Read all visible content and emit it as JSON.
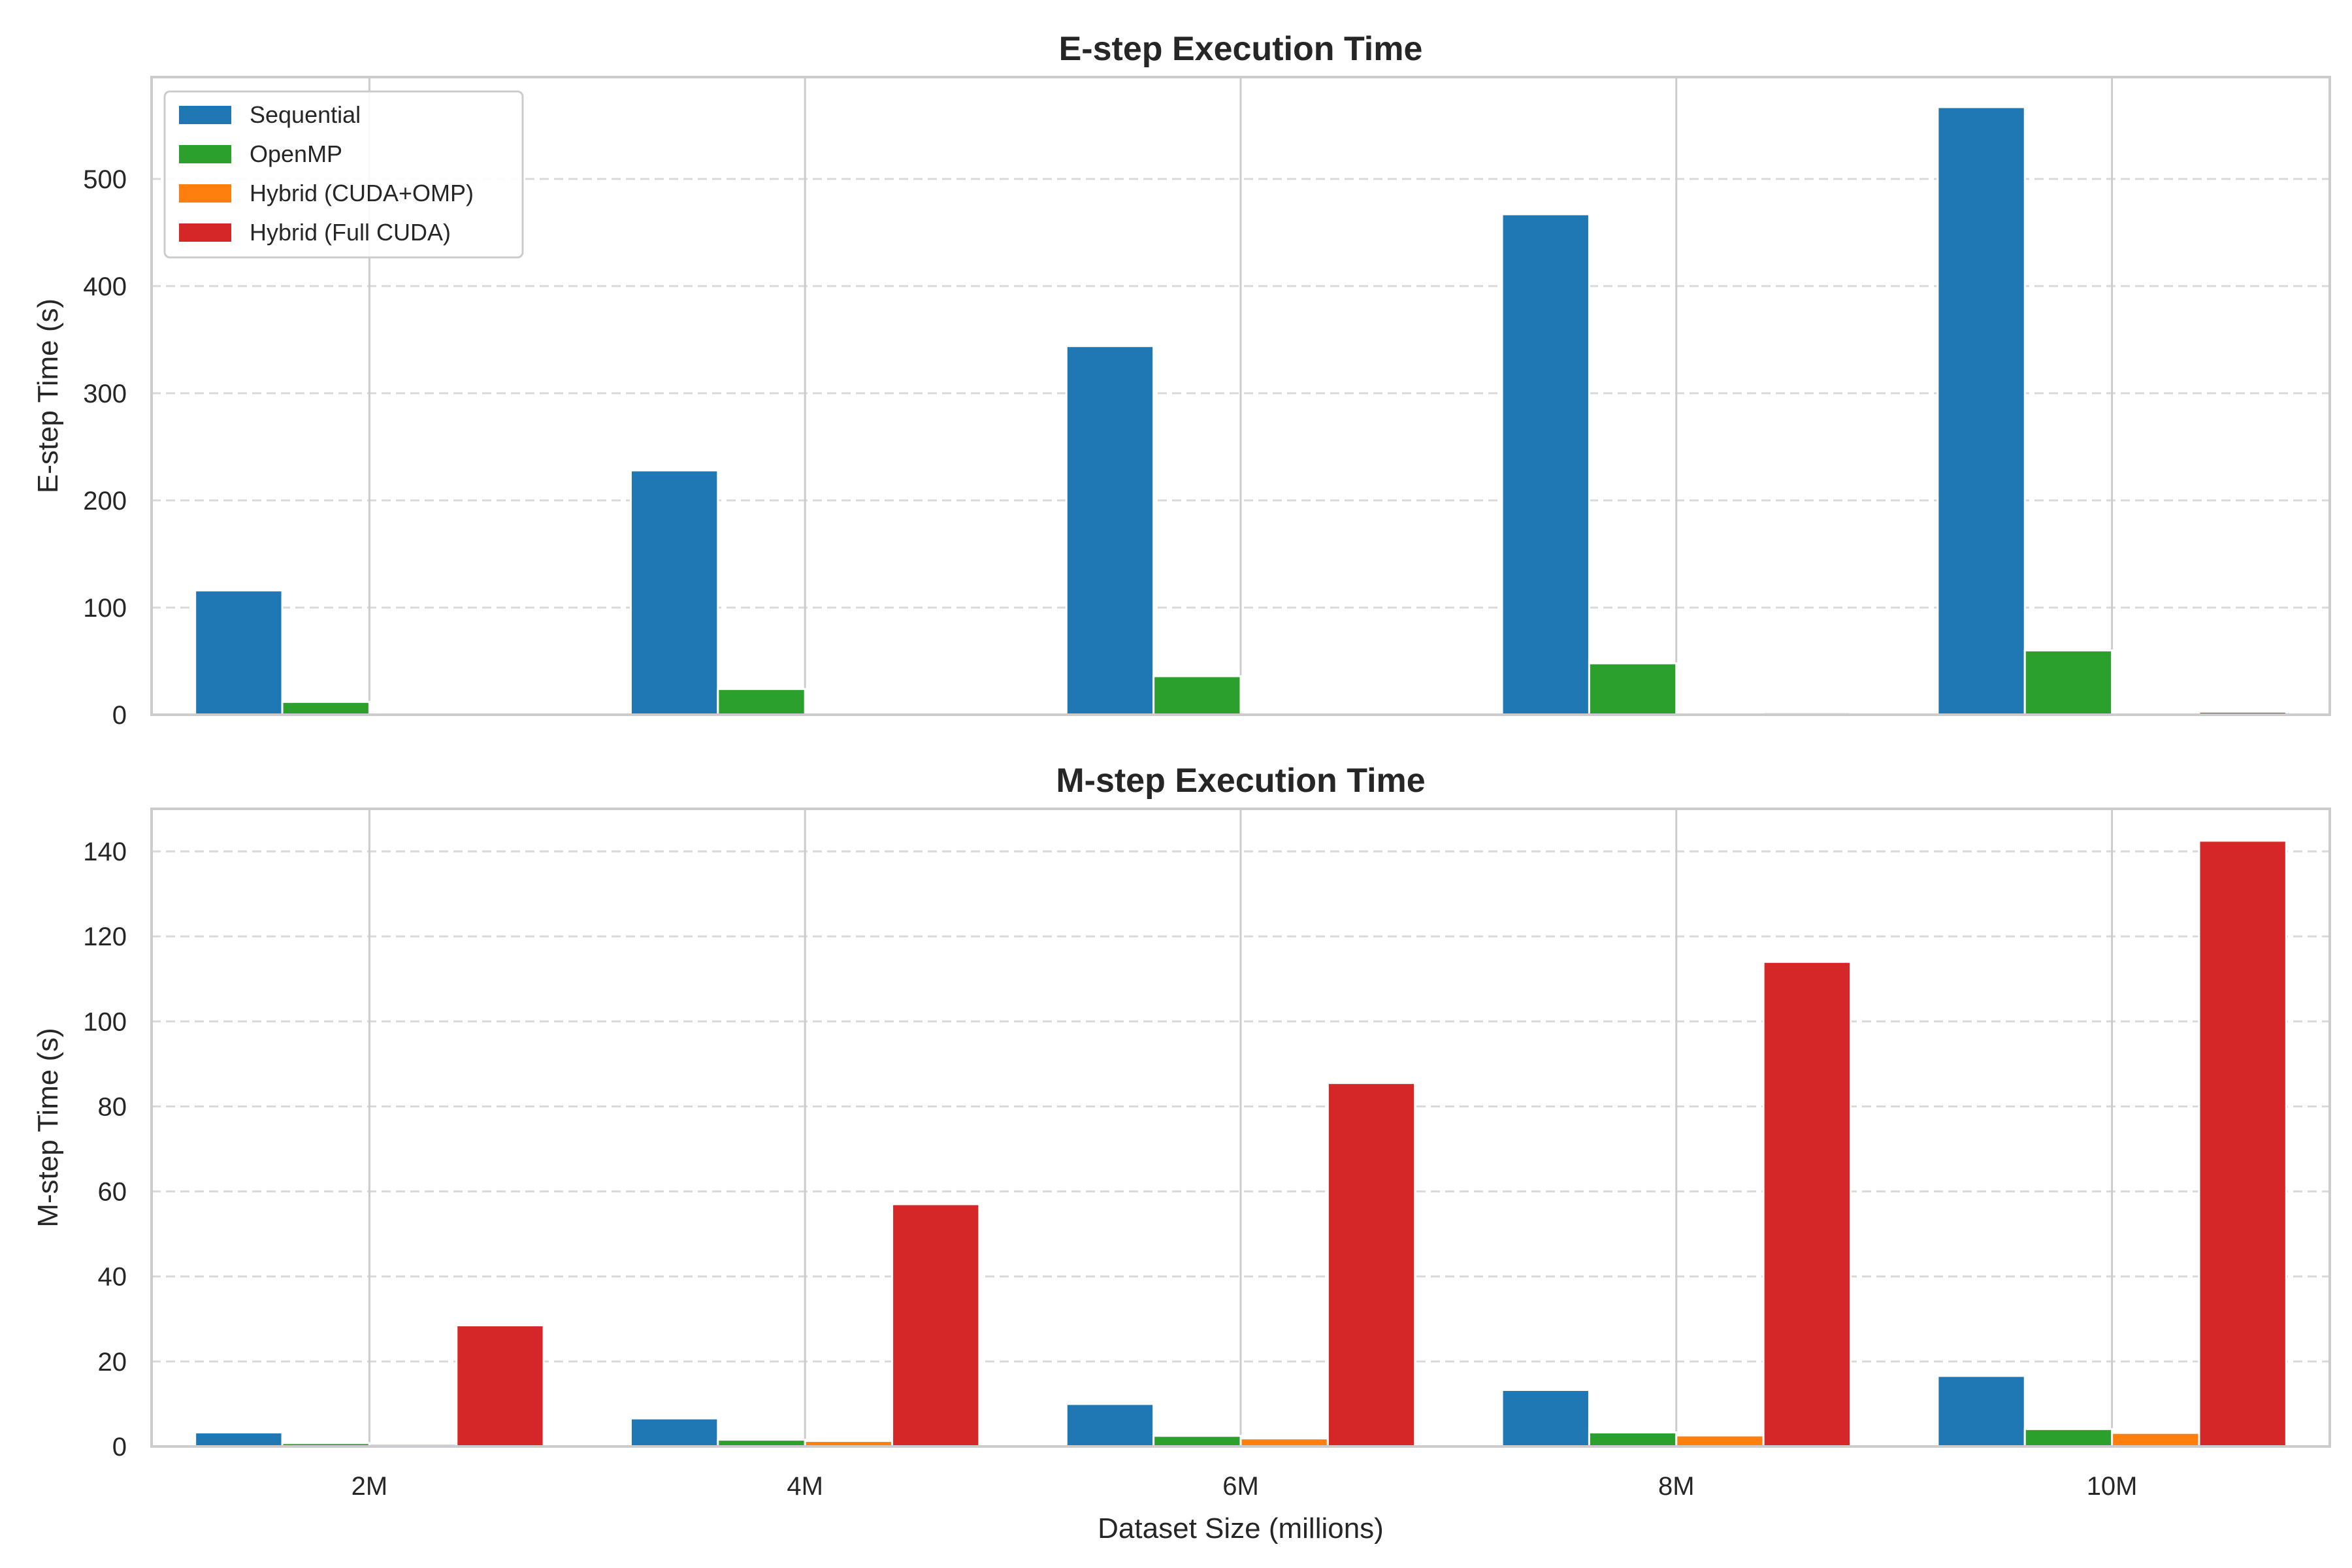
{
  "chart_data": [
    {
      "type": "bar",
      "title": "E-step Execution Time",
      "xlabel": "",
      "ylabel": "E-step Time (s)",
      "categories": [
        "2M",
        "4M",
        "6M",
        "8M",
        "10M"
      ],
      "ylim": [
        0,
        595
      ],
      "yticks": [
        0,
        100,
        200,
        300,
        400,
        500
      ],
      "grid": "y-dashed",
      "legend": "top-left",
      "series": [
        {
          "name": "Sequential",
          "color": "#1f77b4",
          "values": [
            116,
            228,
            344,
            467,
            567
          ]
        },
        {
          "name": "OpenMP",
          "color": "#2ca02c",
          "values": [
            12,
            24,
            36,
            48,
            60
          ]
        },
        {
          "name": "Hybrid (CUDA+OMP)",
          "color": "#ff7f0e",
          "values": [
            0.3,
            0.6,
            0.9,
            1.2,
            1.5
          ]
        },
        {
          "name": "Hybrid (Full CUDA)",
          "color": "#d62728",
          "values": [
            0.6,
            1.1,
            1.7,
            2.2,
            2.8
          ]
        }
      ]
    },
    {
      "type": "bar",
      "title": "M-step Execution Time",
      "xlabel": "Dataset Size (millions)",
      "ylabel": "M-step Time (s)",
      "categories": [
        "2M",
        "4M",
        "6M",
        "8M",
        "10M"
      ],
      "ylim": [
        0,
        150
      ],
      "yticks": [
        0,
        20,
        40,
        60,
        80,
        100,
        120,
        140
      ],
      "grid": "y-dashed",
      "legend": "none",
      "series": [
        {
          "name": "Sequential",
          "color": "#1f77b4",
          "values": [
            3.3,
            6.6,
            10,
            13.3,
            16.6
          ]
        },
        {
          "name": "OpenMP",
          "color": "#2ca02c",
          "values": [
            0.8,
            1.6,
            2.5,
            3.3,
            4.1
          ]
        },
        {
          "name": "Hybrid (CUDA+OMP)",
          "color": "#ff7f0e",
          "values": [
            0.6,
            1.3,
            1.9,
            2.6,
            3.2
          ]
        },
        {
          "name": "Hybrid (Full CUDA)",
          "color": "#d62728",
          "values": [
            28.5,
            57,
            85.5,
            114,
            142.5
          ]
        }
      ]
    }
  ]
}
